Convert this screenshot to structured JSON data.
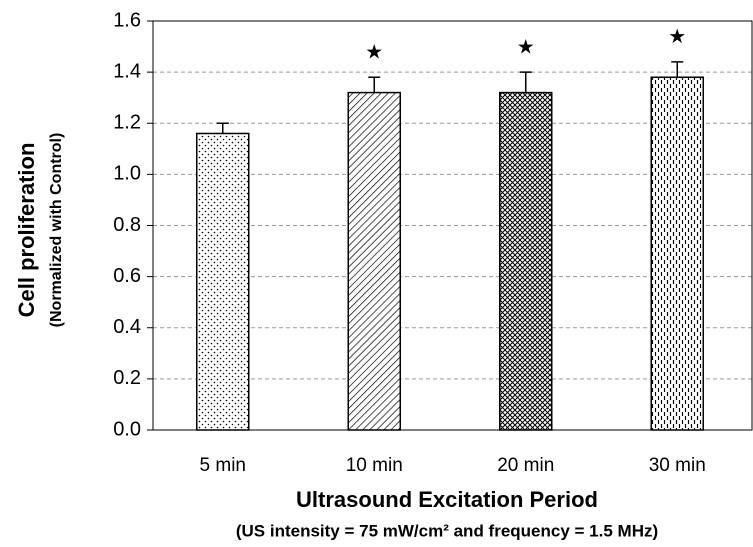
{
  "chart_data": {
    "type": "bar",
    "y_label": "Cell proliferation",
    "y_sublabel": "(Normalized with Control)",
    "x_label": "Ultrasound Excitation Period",
    "x_sublabel": "(US intensity = 75 mW/cm² and frequency = 1.5 MHz)",
    "categories": [
      "5 min",
      "10 min",
      "20 min",
      "30 min"
    ],
    "values": [
      1.16,
      1.32,
      1.32,
      1.38
    ],
    "errors": [
      0.04,
      0.06,
      0.08,
      0.06
    ],
    "markers": [
      null,
      "★",
      "★",
      "★"
    ],
    "patterns": [
      "dots",
      "diagonal",
      "weave",
      "dashes"
    ],
    "color": "#000000",
    "ylim": [
      0,
      1.6
    ],
    "yticks": [
      {
        "value": 0,
        "label": "0.0"
      },
      0.2,
      0.4,
      0.6,
      0.8,
      {
        "value": 1,
        "label": "1.0"
      },
      1.2,
      1.4,
      1.6
    ],
    "grid": true
  }
}
